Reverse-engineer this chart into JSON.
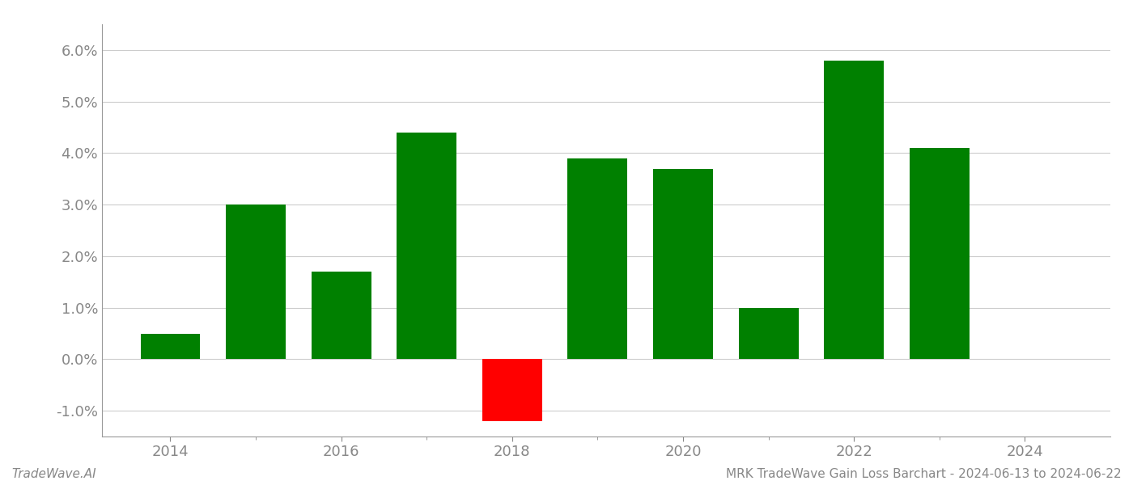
{
  "years": [
    2014,
    2015,
    2016,
    2017,
    2018,
    2019,
    2020,
    2021,
    2022,
    2023
  ],
  "values": [
    0.005,
    0.03,
    0.017,
    0.044,
    -0.012,
    0.039,
    0.037,
    0.01,
    0.058,
    0.041
  ],
  "colors": [
    "#008000",
    "#008000",
    "#008000",
    "#008000",
    "#ff0000",
    "#008000",
    "#008000",
    "#008000",
    "#008000",
    "#008000"
  ],
  "title": "MRK TradeWave Gain Loss Barchart - 2024-06-13 to 2024-06-22",
  "watermark": "TradeWave.AI",
  "ylim": [
    -0.015,
    0.065
  ],
  "yticks": [
    -0.01,
    0.0,
    0.01,
    0.02,
    0.03,
    0.04,
    0.05,
    0.06
  ],
  "bar_width": 0.7,
  "background_color": "#ffffff",
  "grid_color": "#cccccc",
  "spine_color": "#999999",
  "tick_color": "#888888",
  "title_fontsize": 11,
  "watermark_fontsize": 11,
  "tick_fontsize": 13,
  "xlim_left": 2013.2,
  "xlim_right": 2025.0
}
